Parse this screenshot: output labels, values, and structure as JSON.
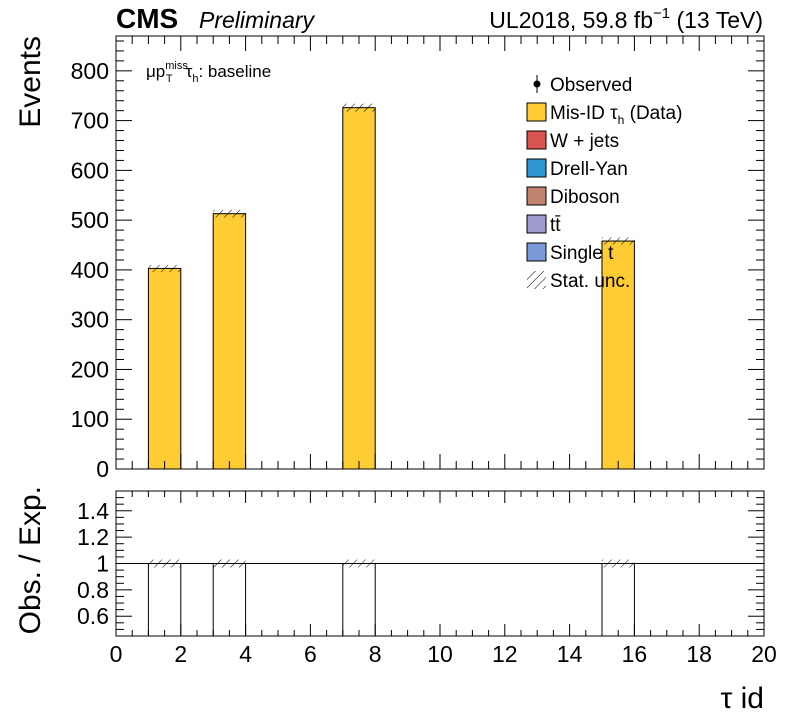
{
  "header": {
    "experiment": "CMS",
    "status": "Preliminary",
    "lumi_prefix": "UL2018, 59.8 fb",
    "lumi_exp": "−1",
    "lumi_suffix": " (13 TeV)"
  },
  "region": {
    "mu": "μp",
    "p_sup": "miss",
    "p_sub": "T",
    "tau": "τ",
    "tau_sub": "h",
    "suffix": ": baseline"
  },
  "legend": {
    "position": "top-right",
    "entries": [
      {
        "key": "observed",
        "label": "Observed",
        "style": "marker",
        "color": "#000000"
      },
      {
        "key": "misid",
        "label": "Mis-ID  τ",
        "sub": "h",
        "tail": " (Data)",
        "style": "box",
        "color": "#ffcc33"
      },
      {
        "key": "wjets",
        "label": "W + jets",
        "style": "box",
        "color": "#d9534f"
      },
      {
        "key": "dy",
        "label": "Drell-Yan",
        "style": "box",
        "color": "#2e95d0"
      },
      {
        "key": "diboson",
        "label": "Diboson",
        "style": "box",
        "color": "#c08370"
      },
      {
        "key": "ttbar",
        "label": "tt̄",
        "style": "box",
        "color": "#9e9acc"
      },
      {
        "key": "singlet",
        "label": "Single t",
        "style": "box",
        "color": "#7b9bd8"
      },
      {
        "key": "statunc",
        "label": "Stat. unc.",
        "style": "hatch",
        "color": "#000000"
      }
    ]
  },
  "chart_data": [
    {
      "type": "bar",
      "panel": "main",
      "ylabel": "Events",
      "xlim": [
        0,
        20
      ],
      "ylim": [
        0,
        870
      ],
      "yticks": [
        0,
        100,
        200,
        300,
        400,
        500,
        600,
        700,
        800
      ],
      "bins": [
        {
          "x": [
            1,
            2
          ],
          "value": 403,
          "unc": 14
        },
        {
          "x": [
            3,
            4
          ],
          "value": 513,
          "unc": 15
        },
        {
          "x": [
            7,
            8
          ],
          "value": 726,
          "unc": 16
        },
        {
          "x": [
            15,
            16
          ],
          "value": 458,
          "unc": 14
        }
      ],
      "series_color": "#ffcc33"
    },
    {
      "type": "line",
      "panel": "ratio",
      "ylabel": "Obs. / Exp.",
      "xlabel": "τ id",
      "xlim": [
        0,
        20
      ],
      "ylim": [
        0.45,
        1.55
      ],
      "yticks": [
        0.6,
        0.8,
        1,
        1.2,
        1.4
      ],
      "ytick_labels": [
        "0.6",
        "0.8",
        "1",
        "1.2",
        "1.4"
      ],
      "xticks": [
        0,
        2,
        4,
        6,
        8,
        10,
        12,
        14,
        16,
        18,
        20
      ],
      "unity": 1,
      "unc_bins": [
        {
          "x": [
            1,
            2
          ],
          "lo": 0.97,
          "hi": 1.03
        },
        {
          "x": [
            3,
            4
          ],
          "lo": 0.97,
          "hi": 1.03
        },
        {
          "x": [
            7,
            8
          ],
          "lo": 0.97,
          "hi": 1.03
        },
        {
          "x": [
            15,
            16
          ],
          "lo": 0.97,
          "hi": 1.03
        }
      ]
    }
  ]
}
